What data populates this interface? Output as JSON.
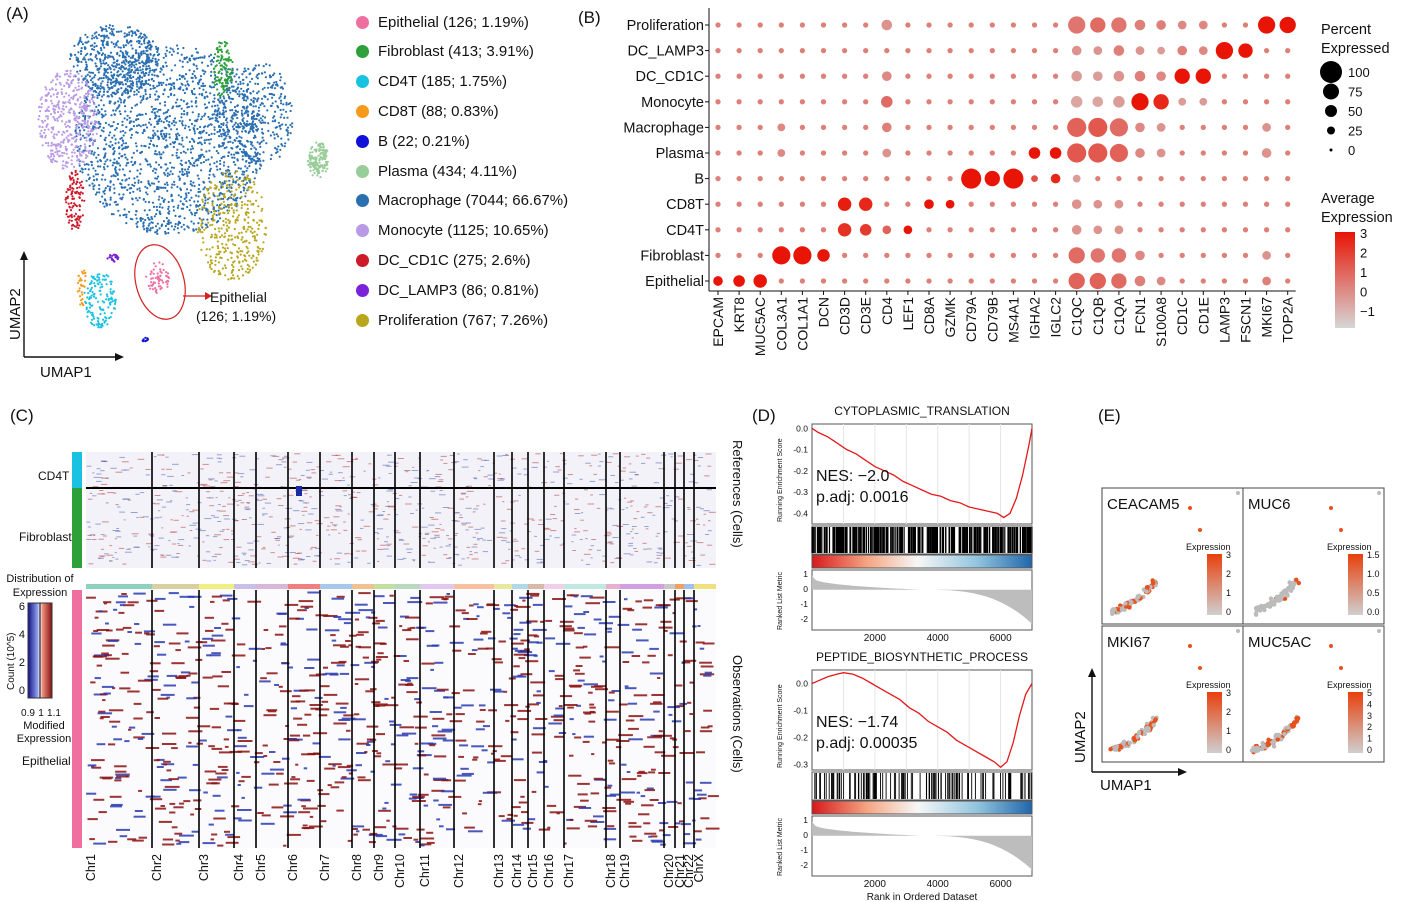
{
  "panels": {
    "a": "(A)",
    "b": "(B)",
    "c": "(C)",
    "d": "(D)",
    "e": "(E)"
  },
  "umap": {
    "xlabel": "UMAP1",
    "ylabel": "UMAP2",
    "callout_line1": "Epithelial",
    "callout_line2": "(126; 1.19%)",
    "legend": [
      {
        "label": "Epithelial (126; 1.19%)",
        "color": "#ef6fa0"
      },
      {
        "label": "Fibroblast (413; 3.91%)",
        "color": "#2ea03a"
      },
      {
        "label": "CD4T (185; 1.75%)",
        "color": "#19c2e0"
      },
      {
        "label": "CD8T (88; 0.83%)",
        "color": "#f59a1a"
      },
      {
        "label": "B (22; 0.21%)",
        "color": "#1010d8"
      },
      {
        "label": "Plasma (434; 4.11%)",
        "color": "#98cc98"
      },
      {
        "label": "Macrophage (7044; 66.67%)",
        "color": "#2a6fb0"
      },
      {
        "label": "Monocyte (1125; 10.65%)",
        "color": "#b99ae6"
      },
      {
        "label": "DC_CD1C (275; 2.6%)",
        "color": "#cc1a2a"
      },
      {
        "label": "DC_LAMP3 (86; 0.81%)",
        "color": "#7a22d8"
      },
      {
        "label": "Proliferation (767; 7.26%)",
        "color": "#b8a61c"
      }
    ]
  },
  "chart_data": [
    {
      "type": "scatter",
      "title": "",
      "xlabel": "",
      "ylabel": "",
      "rows": [
        "Proliferation",
        "DC_LAMP3",
        "DC_CD1C",
        "Monocyte",
        "Macrophage",
        "Plasma",
        "B",
        "CD8T",
        "CD4T",
        "Fibroblast",
        "Epithelial"
      ],
      "genes": [
        "EPCAM",
        "KRT8",
        "MUC5AC",
        "COL3A1",
        "COL1A1",
        "DCN",
        "CD3D",
        "CD3E",
        "CD4",
        "LEF1",
        "CD8A",
        "GZMK",
        "CD79A",
        "CD79B",
        "MS4A1",
        "IGHA2",
        "IGLC2",
        "C1QC",
        "C1QB",
        "C1QA",
        "FCN1",
        "S100A8",
        "CD1C",
        "CD1E",
        "LAMP3",
        "FSCN1",
        "MKI67",
        "TOP2A"
      ],
      "size_legend_title": [
        "Percent",
        "Expressed"
      ],
      "size_legend": [
        "100",
        "75",
        "50",
        "25",
        "0"
      ],
      "color_legend_title": [
        "Average",
        "Expression"
      ],
      "color_legend": [
        "3",
        "2",
        "1",
        "0",
        "−1"
      ],
      "highlights": [
        {
          "row": "Proliferation",
          "gene": "CD4",
          "size": 0.4,
          "color": 0.35
        },
        {
          "row": "Proliferation",
          "gene": "C1QC",
          "size": 0.75,
          "color": 0.5
        },
        {
          "row": "Proliferation",
          "gene": "C1QB",
          "size": 0.65,
          "color": 0.55
        },
        {
          "row": "Proliferation",
          "gene": "C1QA",
          "size": 0.65,
          "color": 0.5
        },
        {
          "row": "Proliferation",
          "gene": "FCN1",
          "size": 0.4,
          "color": 0.45
        },
        {
          "row": "Proliferation",
          "gene": "S100A8",
          "size": 0.35,
          "color": 0.45
        },
        {
          "row": "Proliferation",
          "gene": "CD1C",
          "size": 0.3,
          "color": 0.4
        },
        {
          "row": "Proliferation",
          "gene": "CD1E",
          "size": 0.3,
          "color": 0.4
        },
        {
          "row": "Proliferation",
          "gene": "MKI67",
          "size": 0.75,
          "color": 1.0
        },
        {
          "row": "Proliferation",
          "gene": "TOP2A",
          "size": 0.7,
          "color": 1.0
        },
        {
          "row": "DC_LAMP3",
          "gene": "C1QC",
          "size": 0.35,
          "color": 0.35
        },
        {
          "row": "DC_LAMP3",
          "gene": "C1QB",
          "size": 0.3,
          "color": 0.35
        },
        {
          "row": "DC_LAMP3",
          "gene": "C1QA",
          "size": 0.4,
          "color": 0.45
        },
        {
          "row": "DC_LAMP3",
          "gene": "FCN1",
          "size": 0.3,
          "color": 0.35
        },
        {
          "row": "DC_LAMP3",
          "gene": "S100A8",
          "size": 0.25,
          "color": 0.3
        },
        {
          "row": "DC_LAMP3",
          "gene": "CD1C",
          "size": 0.35,
          "color": 0.45
        },
        {
          "row": "DC_LAMP3",
          "gene": "CD1E",
          "size": 0.3,
          "color": 0.4
        },
        {
          "row": "DC_LAMP3",
          "gene": "LAMP3",
          "size": 0.75,
          "color": 1.0
        },
        {
          "row": "DC_LAMP3",
          "gene": "FSCN1",
          "size": 0.6,
          "color": 1.0
        },
        {
          "row": "DC_CD1C",
          "gene": "CD4",
          "size": 0.35,
          "color": 0.4
        },
        {
          "row": "DC_CD1C",
          "gene": "C1QC",
          "size": 0.4,
          "color": 0.3
        },
        {
          "row": "DC_CD1C",
          "gene": "C1QB",
          "size": 0.35,
          "color": 0.3
        },
        {
          "row": "DC_CD1C",
          "gene": "C1QA",
          "size": 0.4,
          "color": 0.35
        },
        {
          "row": "DC_CD1C",
          "gene": "FCN1",
          "size": 0.4,
          "color": 0.45
        },
        {
          "row": "DC_CD1C",
          "gene": "S100A8",
          "size": 0.35,
          "color": 0.4
        },
        {
          "row": "DC_CD1C",
          "gene": "CD1C",
          "size": 0.65,
          "color": 1.0
        },
        {
          "row": "DC_CD1C",
          "gene": "CD1E",
          "size": 0.65,
          "color": 1.0
        },
        {
          "row": "Monocyte",
          "gene": "CD4",
          "size": 0.45,
          "color": 0.55
        },
        {
          "row": "Monocyte",
          "gene": "C1QC",
          "size": 0.45,
          "color": 0.25
        },
        {
          "row": "Monocyte",
          "gene": "C1QB",
          "size": 0.4,
          "color": 0.25
        },
        {
          "row": "Monocyte",
          "gene": "C1QA",
          "size": 0.45,
          "color": 0.3
        },
        {
          "row": "Monocyte",
          "gene": "FCN1",
          "size": 0.75,
          "color": 1.0
        },
        {
          "row": "Monocyte",
          "gene": "S100A8",
          "size": 0.65,
          "color": 0.9
        },
        {
          "row": "Monocyte",
          "gene": "CD1C",
          "size": 0.25,
          "color": 0.3
        },
        {
          "row": "Monocyte",
          "gene": "CD1E",
          "size": 0.25,
          "color": 0.3
        },
        {
          "row": "Macrophage",
          "gene": "COL3A1",
          "size": 0.25,
          "color": 0.4
        },
        {
          "row": "Macrophage",
          "gene": "CD4",
          "size": 0.35,
          "color": 0.45
        },
        {
          "row": "Macrophage",
          "gene": "C1QC",
          "size": 0.85,
          "color": 0.6
        },
        {
          "row": "Macrophage",
          "gene": "C1QB",
          "size": 0.85,
          "color": 0.65
        },
        {
          "row": "Macrophage",
          "gene": "C1QA",
          "size": 0.8,
          "color": 0.55
        },
        {
          "row": "Macrophage",
          "gene": "FCN1",
          "size": 0.35,
          "color": 0.4
        },
        {
          "row": "Macrophage",
          "gene": "S100A8",
          "size": 0.3,
          "color": 0.35
        },
        {
          "row": "Macrophage",
          "gene": "MKI67",
          "size": 0.3,
          "color": 0.35
        },
        {
          "row": "Plasma",
          "gene": "COL3A1",
          "size": 0.25,
          "color": 0.4
        },
        {
          "row": "Plasma",
          "gene": "CD4",
          "size": 0.3,
          "color": 0.35
        },
        {
          "row": "Plasma",
          "gene": "IGHA2",
          "size": 0.45,
          "color": 1.0
        },
        {
          "row": "Plasma",
          "gene": "IGLC2",
          "size": 0.45,
          "color": 1.0
        },
        {
          "row": "Plasma",
          "gene": "C1QC",
          "size": 0.85,
          "color": 0.65
        },
        {
          "row": "Plasma",
          "gene": "C1QB",
          "size": 0.85,
          "color": 0.65
        },
        {
          "row": "Plasma",
          "gene": "C1QA",
          "size": 0.8,
          "color": 0.6
        },
        {
          "row": "Plasma",
          "gene": "FCN1",
          "size": 0.35,
          "color": 0.4
        },
        {
          "row": "Plasma",
          "gene": "S100A8",
          "size": 0.3,
          "color": 0.35
        },
        {
          "row": "Plasma",
          "gene": "MKI67",
          "size": 0.35,
          "color": 0.35
        },
        {
          "row": "B",
          "gene": "CD79A",
          "size": 0.9,
          "color": 1.0
        },
        {
          "row": "B",
          "gene": "CD79B",
          "size": 0.65,
          "color": 1.0
        },
        {
          "row": "B",
          "gene": "MS4A1",
          "size": 0.9,
          "color": 1.0
        },
        {
          "row": "B",
          "gene": "IGHA2",
          "size": 0.2,
          "color": 0.7
        },
        {
          "row": "B",
          "gene": "IGLC2",
          "size": 0.35,
          "color": 0.9
        },
        {
          "row": "B",
          "gene": "C1QC",
          "size": 0.25,
          "color": 0.3
        },
        {
          "row": "CD8T",
          "gene": "CD3D",
          "size": 0.55,
          "color": 0.95
        },
        {
          "row": "CD8T",
          "gene": "CD3E",
          "size": 0.55,
          "color": 0.9
        },
        {
          "row": "CD8T",
          "gene": "CD8A",
          "size": 0.35,
          "color": 1.0
        },
        {
          "row": "CD8T",
          "gene": "GZMK",
          "size": 0.3,
          "color": 1.0
        },
        {
          "row": "CD8T",
          "gene": "C1QC",
          "size": 0.35,
          "color": 0.35
        },
        {
          "row": "CD8T",
          "gene": "C1QB",
          "size": 0.3,
          "color": 0.35
        },
        {
          "row": "CD8T",
          "gene": "C1QA",
          "size": 0.3,
          "color": 0.35
        },
        {
          "row": "CD4T",
          "gene": "CD3D",
          "size": 0.55,
          "color": 0.85
        },
        {
          "row": "CD4T",
          "gene": "CD3E",
          "size": 0.45,
          "color": 0.8
        },
        {
          "row": "CD4T",
          "gene": "CD4",
          "size": 0.3,
          "color": 0.6
        },
        {
          "row": "CD4T",
          "gene": "LEF1",
          "size": 0.3,
          "color": 1.0
        },
        {
          "row": "CD4T",
          "gene": "C1QC",
          "size": 0.35,
          "color": 0.35
        },
        {
          "row": "CD4T",
          "gene": "C1QB",
          "size": 0.3,
          "color": 0.35
        },
        {
          "row": "CD4T",
          "gene": "C1QA",
          "size": 0.3,
          "color": 0.35
        },
        {
          "row": "Fibroblast",
          "gene": "COL3A1",
          "size": 0.8,
          "color": 1.0
        },
        {
          "row": "Fibroblast",
          "gene": "COL1A1",
          "size": 0.8,
          "color": 1.0
        },
        {
          "row": "Fibroblast",
          "gene": "DCN",
          "size": 0.5,
          "color": 1.0
        },
        {
          "row": "Fibroblast",
          "gene": "C1QC",
          "size": 0.7,
          "color": 0.55
        },
        {
          "row": "Fibroblast",
          "gene": "C1QB",
          "size": 0.6,
          "color": 0.5
        },
        {
          "row": "Fibroblast",
          "gene": "C1QA",
          "size": 0.6,
          "color": 0.5
        },
        {
          "row": "Fibroblast",
          "gene": "FCN1",
          "size": 0.35,
          "color": 0.4
        },
        {
          "row": "Fibroblast",
          "gene": "MKI67",
          "size": 0.3,
          "color": 0.35
        },
        {
          "row": "Epithelial",
          "gene": "EPCAM",
          "size": 0.35,
          "color": 1.0
        },
        {
          "row": "Epithelial",
          "gene": "KRT8",
          "size": 0.45,
          "color": 1.0
        },
        {
          "row": "Epithelial",
          "gene": "MUC5AC",
          "size": 0.55,
          "color": 1.0
        },
        {
          "row": "Epithelial",
          "gene": "C1QC",
          "size": 0.7,
          "color": 0.6
        },
        {
          "row": "Epithelial",
          "gene": "C1QB",
          "size": 0.7,
          "color": 0.6
        },
        {
          "row": "Epithelial",
          "gene": "C1QA",
          "size": 0.65,
          "color": 0.55
        },
        {
          "row": "Epithelial",
          "gene": "FCN1",
          "size": 0.4,
          "color": 0.45
        },
        {
          "row": "Epithelial",
          "gene": "S100A8",
          "size": 0.3,
          "color": 0.4
        },
        {
          "row": "Epithelial",
          "gene": "MKI67",
          "size": 0.3,
          "color": 0.45
        }
      ]
    },
    {
      "type": "heatmap",
      "title": "",
      "references_label": "References (Cells)",
      "observations_label": "Observations (Cells)",
      "groups": [
        "CD4T",
        "Fibroblast",
        "Epithelial"
      ],
      "chromosomes": [
        "Chr1",
        "Chr2",
        "Chr3",
        "Chr4",
        "Chr5",
        "Chr6",
        "Chr7",
        "Chr8",
        "Chr9",
        "Chr10",
        "Chr11",
        "Chr12",
        "Chr13",
        "Chr14",
        "Chr15",
        "Chr16",
        "Chr17",
        "Chr18",
        "Chr19",
        "Chr20",
        "Chr21",
        "Chr22",
        "ChrX"
      ],
      "colorbar_title": [
        "Distribution of",
        "Expression"
      ],
      "colorbar_ylabel": "Count (10^5)",
      "colorbar_yticks": [
        "6",
        "4",
        "2",
        "0"
      ],
      "colorbar_xticks": [
        "0.9",
        "1",
        "1.1"
      ],
      "colorbar_xlabel": [
        "Modified",
        "Expression"
      ]
    },
    {
      "type": "line",
      "title": "CYTOPLASMIC_TRANSLATION",
      "ylabel": "Running Enrichment Score",
      "metric_ylabel": "Ranked List Metric",
      "nes": "NES: −2.0",
      "padj": "p.adj: 0.0016",
      "x_ticks": [
        "2000",
        "4000",
        "6000"
      ],
      "y_ticks": [
        "0.0",
        "-0.1",
        "-0.2",
        "-0.3",
        "-0.4"
      ],
      "metric_ticks": [
        "1",
        "0",
        "-1",
        "-2"
      ],
      "xlim": [
        0,
        7000
      ],
      "ylim": [
        -0.45,
        0.02
      ],
      "x": [
        0,
        200,
        500,
        800,
        1100,
        1400,
        1700,
        2000,
        2300,
        2600,
        2900,
        3200,
        3500,
        3800,
        4100,
        4400,
        4700,
        5000,
        5300,
        5600,
        5900,
        6100,
        6300,
        6500,
        6700,
        6900,
        7000
      ],
      "y": [
        0.0,
        -0.02,
        -0.04,
        -0.07,
        -0.1,
        -0.12,
        -0.15,
        -0.18,
        -0.2,
        -0.22,
        -0.25,
        -0.27,
        -0.29,
        -0.31,
        -0.32,
        -0.34,
        -0.35,
        -0.37,
        -0.38,
        -0.39,
        -0.4,
        -0.42,
        -0.4,
        -0.33,
        -0.22,
        -0.08,
        0.0
      ]
    },
    {
      "type": "line",
      "title": "PEPTIDE_BIOSYNTHETIC_PROCESS",
      "ylabel": "Running Enrichment Score",
      "metric_ylabel": "Ranked List Metric",
      "nes": "NES: −1.74",
      "padj": "p.adj: 0.00035",
      "xlabel": "Rank in Ordered Dataset",
      "x_ticks": [
        "2000",
        "4000",
        "6000"
      ],
      "y_ticks": [
        "0.0",
        "-0.1",
        "-0.2",
        "-0.3"
      ],
      "metric_ticks": [
        "1",
        "0",
        "-1",
        "-2"
      ],
      "xlim": [
        0,
        7000
      ],
      "ylim": [
        -0.32,
        0.05
      ],
      "x": [
        0,
        200,
        500,
        800,
        1000,
        1300,
        1600,
        1900,
        2200,
        2500,
        2800,
        3100,
        3400,
        3700,
        4000,
        4300,
        4600,
        4900,
        5200,
        5500,
        5800,
        6000,
        6200,
        6400,
        6600,
        6800,
        7000
      ],
      "y": [
        0.0,
        0.01,
        0.025,
        0.035,
        0.04,
        0.035,
        0.02,
        0.0,
        -0.02,
        -0.04,
        -0.06,
        -0.09,
        -0.11,
        -0.14,
        -0.16,
        -0.18,
        -0.21,
        -0.23,
        -0.25,
        -0.27,
        -0.29,
        -0.31,
        -0.29,
        -0.22,
        -0.12,
        -0.04,
        0.0
      ]
    },
    {
      "type": "scatter",
      "title": "",
      "xlabel": "UMAP1",
      "ylabel": "UMAP2",
      "facets": [
        {
          "gene": "CEACAM5",
          "legend_title": "Expression",
          "ticks": [
            "3",
            "2",
            "1",
            "0"
          ]
        },
        {
          "gene": "MUC6",
          "legend_title": "Expression",
          "ticks": [
            "1.5",
            "1.0",
            "0.5",
            "0.0"
          ]
        },
        {
          "gene": "MKI67",
          "legend_title": "Expression",
          "ticks": [
            "3",
            "2",
            "1",
            "0"
          ]
        },
        {
          "gene": "MUC5AC",
          "legend_title": "Expression",
          "ticks": [
            "5",
            "4",
            "3",
            "2",
            "1",
            "0"
          ]
        }
      ]
    }
  ]
}
